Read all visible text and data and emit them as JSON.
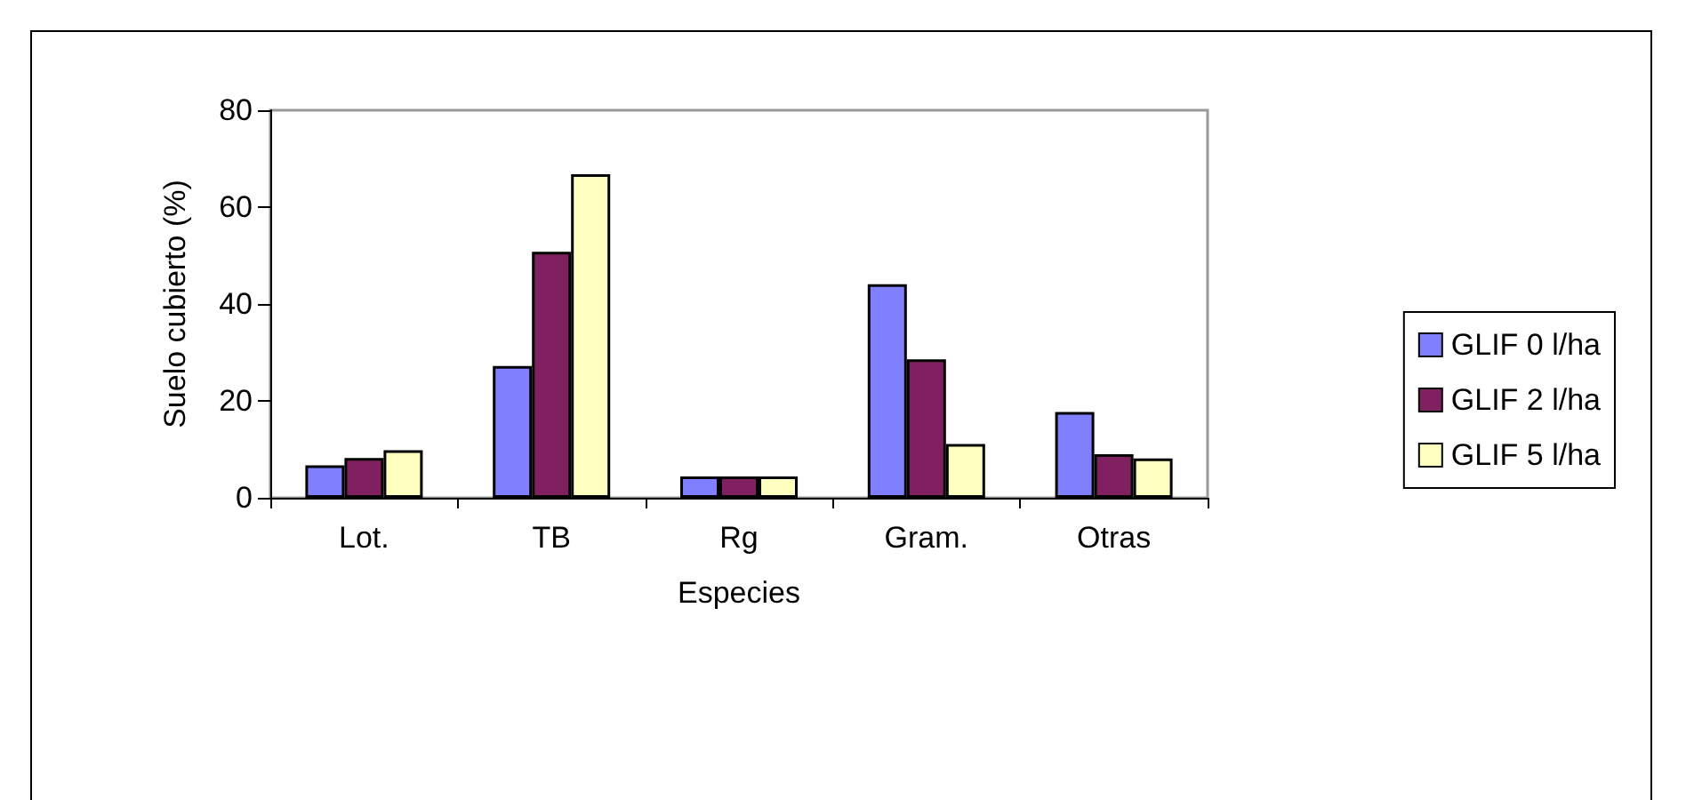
{
  "chart_data": {
    "type": "bar",
    "xlabel": "Especies",
    "ylabel": "Suelo cubierto (%)",
    "categories": [
      "Lot.",
      "TB",
      "Rg",
      "Gram.",
      "Otras"
    ],
    "series": [
      {
        "name": "GLIF 0 l/ha",
        "color": "#8080ff",
        "values": [
          6.7,
          27.2,
          4.4,
          44.1,
          17.7
        ]
      },
      {
        "name": "GLIF 2 l/ha",
        "color": "#802060",
        "values": [
          8.2,
          50.8,
          4.4,
          28.6,
          9.0
        ]
      },
      {
        "name": "GLIF 5 l/ha",
        "color": "#ffffc0",
        "values": [
          9.8,
          66.8,
          4.4,
          11.1,
          8.1
        ]
      }
    ],
    "ylim": [
      0,
      80
    ],
    "yticks": [
      0,
      20,
      40,
      60,
      80
    ],
    "grid": false,
    "legend": "right"
  }
}
